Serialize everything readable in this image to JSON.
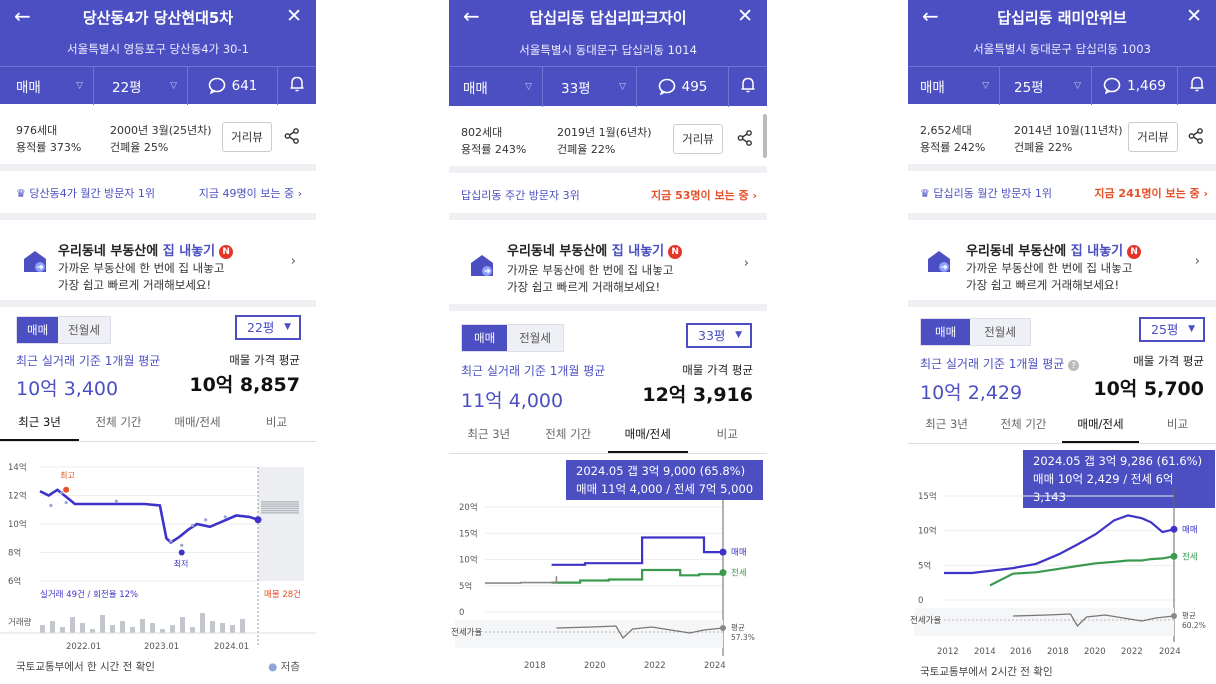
{
  "colors": {
    "accent": "#4b4fc2",
    "sale_line": "#3e33c9",
    "jeonse_line": "#3a9a4e",
    "hot": "#e5502a"
  },
  "panels": [
    {
      "title": "당산동4가 당산현대5차",
      "address": "서울특별시 영등포구 당산동4가 30-1",
      "deal_type": "매매",
      "size": "22평",
      "comments": "641",
      "households": "976세대",
      "far": "용적률 373%",
      "built": "2000년 3월(25년차)",
      "bcr": "건폐율 25%",
      "street_view": "거리뷰",
      "visit_left": "당산동4가 월간 방문자 1위",
      "visit_right": "지금 49명이 보는 중 ›",
      "promo_title_pre": "우리동네 부동산에",
      "promo_title_em": "집 내놓기",
      "promo_line1": "가까운 부동산에 한 번에 집 내놓고",
      "promo_line2": "가장 쉽고 빠르게 거래해보세요!",
      "badge": "N",
      "toggle_sale": "매매",
      "toggle_jeonse": "전월세",
      "size_select": "22평",
      "recent_label": "최근 실거래 기준 1개월 평균",
      "recent_value": "10억 3,400",
      "listing_label": "매물 가격 평균",
      "listing_value": "10억 8,857",
      "chart_tabs": [
        "최근 3년",
        "전체 기간",
        "매매/전세",
        "비교"
      ],
      "footer": "국토교통부에서 한 시간 전 확인",
      "legend_low": "저층"
    },
    {
      "title": "답십리동 답십리파크자이",
      "address": "서울특별시 동대문구 답십리동 1014",
      "deal_type": "매매",
      "size": "33평",
      "comments": "495",
      "households": "802세대",
      "far": "용적률 243%",
      "built": "2019년 1월(6년차)",
      "bcr": "건폐율 22%",
      "street_view": "거리뷰",
      "visit_left": "답십리동 주간 방문자 3위",
      "visit_right": "지금 53명이 보는 중 ›",
      "promo_title_pre": "우리동네 부동산에",
      "promo_title_em": "집 내놓기",
      "promo_line1": "가까운 부동산에 한 번에 집 내놓고",
      "promo_line2": "가장 쉽고 빠르게 거래해보세요!",
      "badge": "N",
      "toggle_sale": "매매",
      "toggle_jeonse": "전월세",
      "size_select": "33평",
      "recent_label": "최근 실거래 기준 1개월 평균",
      "recent_value": "11억 4,000",
      "listing_label": "매물 가격 평균",
      "listing_value": "12억 3,916",
      "chart_tabs": [
        "최근 3년",
        "전체 기간",
        "매매/전세",
        "비교"
      ],
      "tooltip_line1": "2024.05  갭 3억 9,000 (65.8%)",
      "tooltip_line2": "매매 11억 4,000 / 전세 7억 5,000",
      "footer": "국토교통부에서 2시간 전 확인"
    },
    {
      "title": "답십리동 래미안위브",
      "address": "서울특별시 동대문구 답십리동 1003",
      "deal_type": "매매",
      "size": "25평",
      "comments": "1,469",
      "households": "2,652세대",
      "far": "용적률 242%",
      "built": "2014년 10월(11년차)",
      "bcr": "건폐율 22%",
      "street_view": "거리뷰",
      "visit_left": "답십리동 월간 방문자 1위",
      "visit_right": "지금 241명이 보는 중 ›",
      "promo_title_pre": "우리동네 부동산에",
      "promo_title_em": "집 내놓기",
      "promo_line1": "가까운 부동산에 한 번에 집 내놓고",
      "promo_line2": "가장 쉽고 빠르게 거래해보세요!",
      "badge": "N",
      "toggle_sale": "매매",
      "toggle_jeonse": "전월세",
      "size_select": "25평",
      "recent_label": "최근 실거래 기준 1개월 평균",
      "recent_value": "10억 2,429",
      "listing_label": "매물 가격 평균",
      "listing_value": "10억 5,700",
      "chart_tabs": [
        "최근 3년",
        "전체 기간",
        "매매/전세",
        "비교"
      ],
      "tooltip_line1": "2024.05  갭 3억 9,286 (61.6%)",
      "tooltip_line2": "매매 10억 2,429 / 전세 6억 3,143",
      "footer": "국토교통부에서 2시간 전 확인"
    }
  ],
  "chart_data": [
    {
      "type": "line",
      "y_ticks": [
        "14억",
        "12억",
        "10억",
        "8억",
        "6억"
      ],
      "ylim": [
        6,
        14
      ],
      "x_ticks": [
        "2022.01",
        "2023.01",
        "2024.01"
      ],
      "series": [
        {
          "values_t": [
            0,
            0.04,
            0.08,
            0.12,
            0.16,
            0.2,
            0.28,
            0.38,
            0.48,
            0.55,
            0.58,
            0.6,
            0.64,
            0.68,
            0.72,
            0.78,
            0.84,
            0.9,
            0.96,
            1.0
          ],
          "values": [
            12.3,
            12.0,
            12.4,
            11.9,
            11.4,
            11.4,
            11.4,
            11.4,
            11.4,
            11.3,
            9.0,
            8.7,
            9.1,
            9.6,
            10.0,
            9.8,
            10.2,
            10.6,
            10.5,
            10.3
          ]
        }
      ],
      "annotations": {
        "max": "최고",
        "min": "최저",
        "trades": "실거래 49건 / 회전율 12%",
        "listing": "매물 28건",
        "volume_label": "거래량"
      }
    },
    {
      "type": "line",
      "y_ticks": [
        "20억",
        "15억",
        "10억",
        "5억",
        "0"
      ],
      "ylim": [
        0,
        20
      ],
      "x_ticks": [
        "2018",
        "2020",
        "2022",
        "2024"
      ],
      "series": [
        {
          "name": "매매",
          "t": [
            0.28,
            0.35,
            0.42,
            0.5,
            0.58,
            0.66,
            0.74,
            0.82,
            0.88,
            0.92,
            1.0
          ],
          "values": [
            9.0,
            9.0,
            9.3,
            9.3,
            9.3,
            14.2,
            14.2,
            14.2,
            14.2,
            11.4,
            11.4
          ]
        },
        {
          "name": "전세",
          "t": [
            0.28,
            0.4,
            0.52,
            0.6,
            0.66,
            0.75,
            0.82,
            0.9,
            1.0
          ],
          "values": [
            5.6,
            6.0,
            6.2,
            6.2,
            8.0,
            8.0,
            7.0,
            7.2,
            7.5
          ]
        },
        {
          "name": "",
          "t": [
            0.0,
            0.15,
            0.3
          ],
          "values": [
            5.5,
            5.6,
            6.8
          ]
        }
      ],
      "jeonse_ratio_label": "전세가율",
      "ratio_end_label": "평균",
      "ratio_end_value": "57.3%"
    },
    {
      "type": "line",
      "y_ticks": [
        "15억",
        "10억",
        "5억",
        "0"
      ],
      "ylim": [
        0,
        15
      ],
      "x_ticks": [
        "2012",
        "2014",
        "2016",
        "2018",
        "2020",
        "2022",
        "2024"
      ],
      "series": [
        {
          "name": "매매",
          "t": [
            0.0,
            0.12,
            0.2,
            0.3,
            0.4,
            0.5,
            0.58,
            0.66,
            0.74,
            0.8,
            0.86,
            0.9,
            0.95,
            1.0
          ],
          "values": [
            3.9,
            3.9,
            4.2,
            4.6,
            5.2,
            6.6,
            8.0,
            9.5,
            11.5,
            12.2,
            11.8,
            11.2,
            9.8,
            10.2
          ]
        },
        {
          "name": "전세",
          "t": [
            0.2,
            0.3,
            0.4,
            0.5,
            0.58,
            0.66,
            0.74,
            0.8,
            0.86,
            0.9,
            0.95,
            1.0
          ],
          "values": [
            2.1,
            3.8,
            4.0,
            4.5,
            4.9,
            5.3,
            5.5,
            5.7,
            5.7,
            5.9,
            6.0,
            6.3
          ]
        }
      ],
      "jeonse_ratio_label": "전세가율",
      "ratio_end_label": "평균",
      "ratio_end_value": "60.2%"
    }
  ]
}
